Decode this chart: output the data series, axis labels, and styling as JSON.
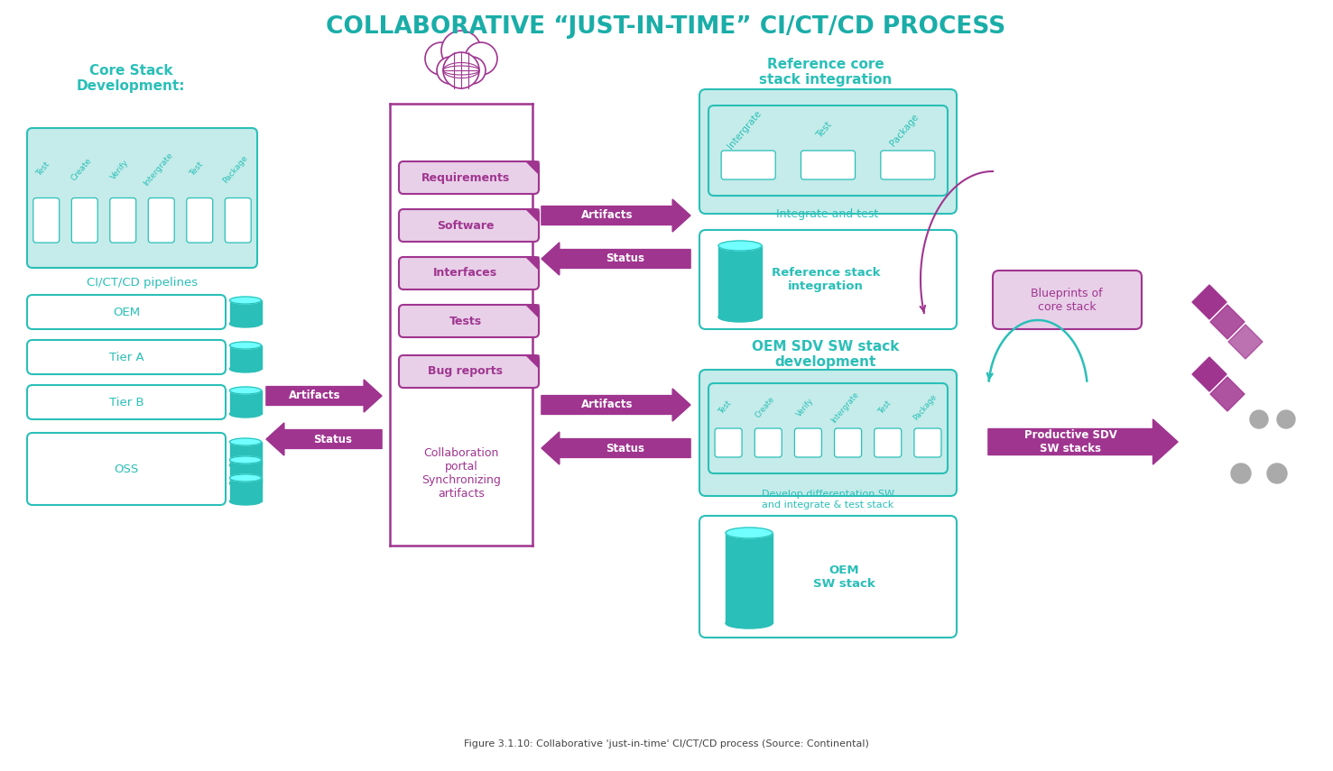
{
  "title": "COLLABORATIVE “JUST-IN-TIME” CI/CT/CD PROCESS",
  "title_color": "#1aada8",
  "bg_color": "#ffffff",
  "teal": "#2abfb8",
  "teal_light": "#c5ecea",
  "purple": "#a03590",
  "purple_fill": "#e8d0e8",
  "core_stack_label": "Core Stack\nDevelopment:",
  "ci_pipelines_label": "CI/CT/CD pipelines",
  "oem_label": "OEM",
  "tier_a_label": "Tier A",
  "tier_b_label": "Tier B",
  "oss_label": "OSS",
  "artifacts_label1": "Artifacts",
  "status_label1": "Status",
  "collab_portal_label": "Collaboration\nportal\nSynchronizing\nartifacts",
  "requirements_label": "Requirements",
  "software_label": "Software",
  "interfaces_label": "Interfaces",
  "tests_label": "Tests",
  "bug_reports_label": "Bug reports",
  "artifacts_label2": "Artifacts",
  "status_label2": "Status",
  "ref_core_title": "Reference core\nstack integration",
  "integrate_test_label": "Integrate and test",
  "ref_stack_label": "Reference stack\nintegration",
  "oem_sdv_title": "OEM SDV SW stack\ndevelopment",
  "develop_sw_label": "Develop differentation SW\nand integrate & test stack",
  "blueprints_label": "Blueprints of\ncore stack",
  "productive_sdv_label": "Productive SDV\nSW stacks",
  "oem_sw_stack_label": "OEM\nSW stack",
  "artifacts_label3": "Artifacts",
  "status_label3": "Status",
  "pipeline_steps6": [
    "Test",
    "Create",
    "Verify",
    "Intergrate",
    "Test",
    "Package"
  ],
  "pipeline_steps3": [
    "Intergrate",
    "Test",
    "Package"
  ],
  "pipeline_icons6": [
    "≡",
    "→",
    "≡",
    "⊙",
    "○",
    "⊕"
  ],
  "pipeline_icons3": [
    "⊙",
    "○",
    "⊕"
  ]
}
